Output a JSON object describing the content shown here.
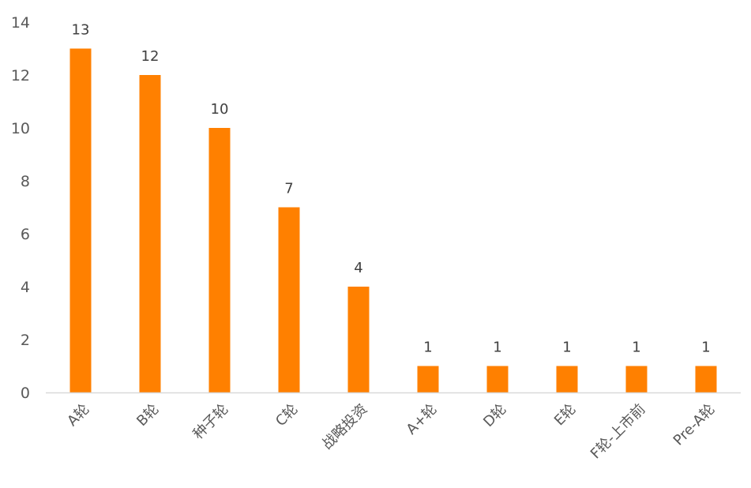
{
  "chart_data": {
    "type": "bar",
    "categories": [
      "A轮",
      "B轮",
      "种子轮",
      "C轮",
      "战略投资",
      "A+轮",
      "D轮",
      "E轮",
      "F轮-上市前",
      "Pre-A轮"
    ],
    "values": [
      13,
      12,
      10,
      7,
      4,
      1,
      1,
      1,
      1,
      1
    ],
    "yticks": [
      "0",
      "2",
      "4",
      "6",
      "8",
      "10",
      "12",
      "14"
    ],
    "ylim": [
      0,
      14
    ],
    "title": "",
    "xlabel": "",
    "ylabel": "",
    "grid": false,
    "legend": "none",
    "bar_color": "#FF8000",
    "axis_color": "#D9D9D9"
  }
}
